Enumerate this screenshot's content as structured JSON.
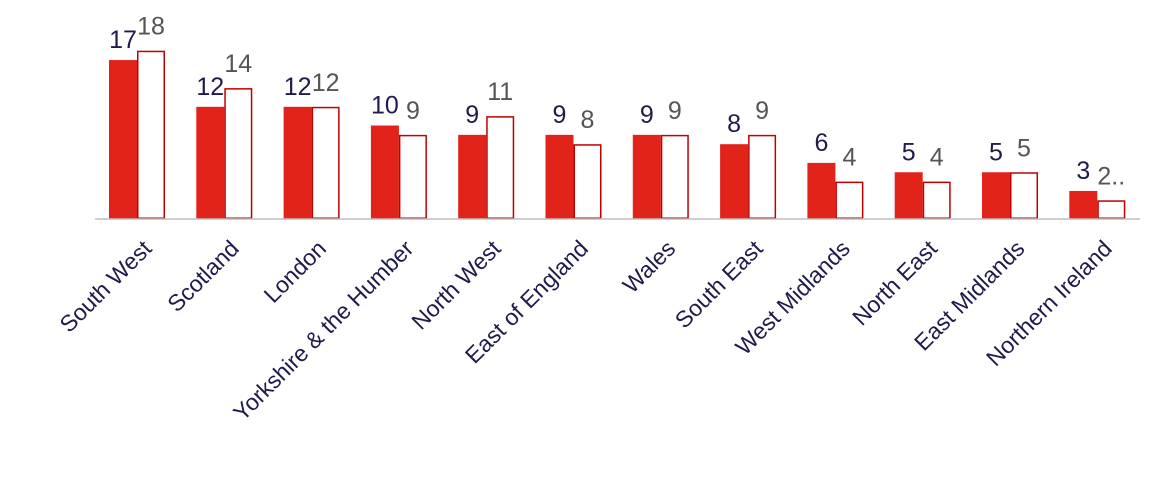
{
  "chart_data": {
    "type": "bar",
    "categories": [
      "South West",
      "Scotland",
      "London",
      "Yorkshire & the Humber",
      "North West",
      "East of England",
      "Wales",
      "South East",
      "West Midlands",
      "North East",
      "East Midlands",
      "Northern Ireland"
    ],
    "series": [
      {
        "values": [
          17,
          12,
          12,
          10,
          9,
          9,
          9,
          8,
          6,
          5,
          5,
          3
        ],
        "labels": [
          "17",
          "12",
          "12",
          "10",
          "9",
          "9",
          "9",
          "8",
          "6",
          "5",
          "5",
          "3"
        ],
        "color": "#e2231a",
        "style": "filled"
      },
      {
        "values": [
          18,
          14,
          12,
          9,
          11,
          8,
          9,
          9,
          4,
          4,
          5,
          2
        ],
        "labels": [
          "18",
          "14",
          "12",
          "9",
          "11",
          "8",
          "9",
          "9",
          "4",
          "4",
          "5",
          "2.."
        ],
        "color": "#c00000",
        "style": "outline"
      }
    ],
    "ylim": [
      0,
      18
    ],
    "grid": false,
    "legend": "none",
    "title": "",
    "xlabel": "",
    "ylabel": ""
  }
}
